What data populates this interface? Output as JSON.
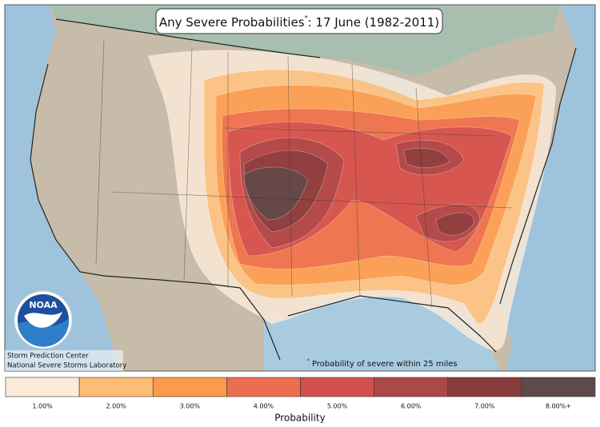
{
  "title": {
    "text": "Any Severe Probabilities",
    "mark": "*",
    "date": ": 17 June (1982-2011)"
  },
  "footnote": {
    "mark": "*",
    "text": "Probability of severe within 25 miles"
  },
  "credits": [
    "Storm Prediction Center",
    "National Severe Storms Laboratory"
  ],
  "logo": "NOAA",
  "legend": {
    "title": "Probability",
    "levels": [
      {
        "label": "1.00%",
        "color": "#fdebd9"
      },
      {
        "label": "2.00%",
        "color": "#fdbd75"
      },
      {
        "label": "3.00%",
        "color": "#fc9a4d"
      },
      {
        "label": "4.00%",
        "color": "#ec6e50"
      },
      {
        "label": "5.00%",
        "color": "#d35050"
      },
      {
        "label": "6.00%",
        "color": "#ad4848"
      },
      {
        "label": "7.00%",
        "color": "#8a3d3d"
      },
      {
        "label": "8.00%+",
        "color": "#5e4a4a"
      }
    ]
  }
}
